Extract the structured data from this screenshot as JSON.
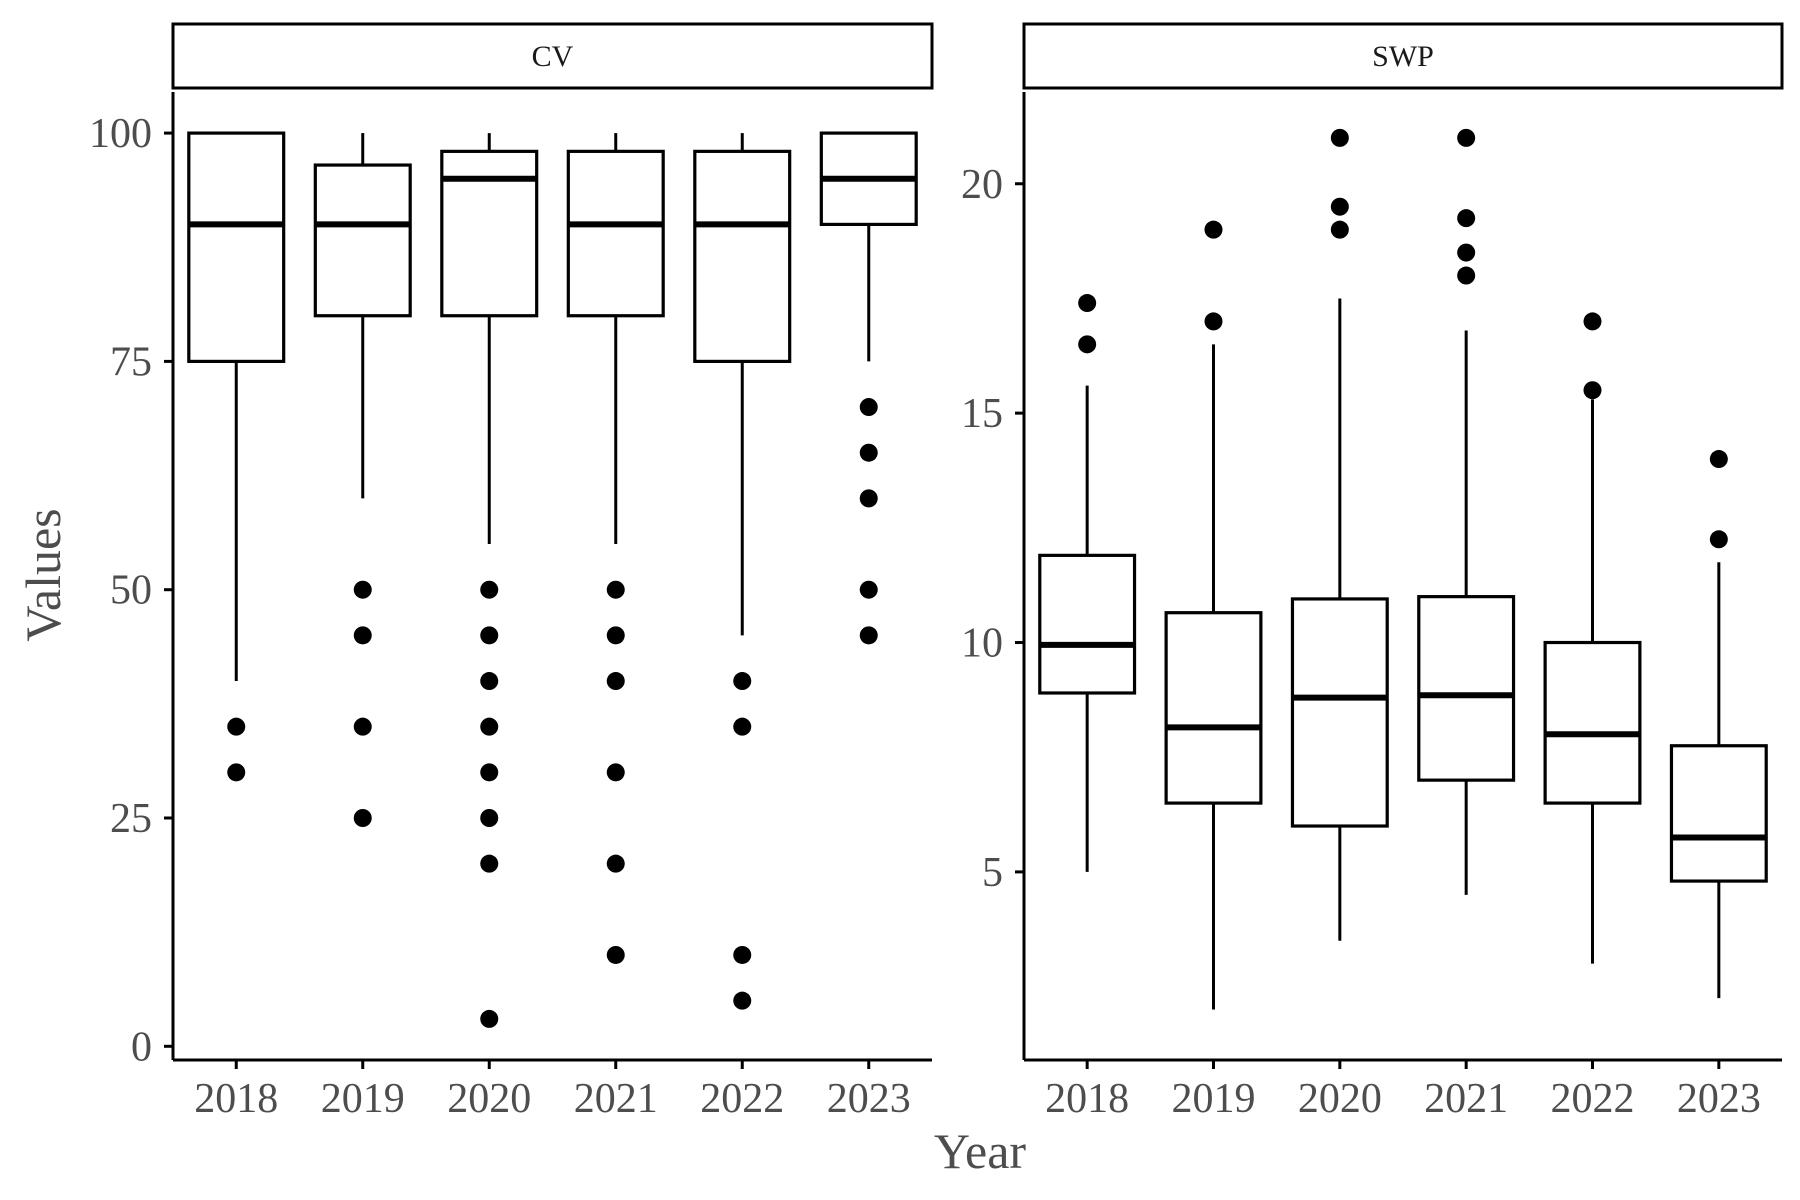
{
  "chart_data": [
    {
      "type": "boxplot",
      "facet": "CV",
      "xlabel": "Year",
      "ylabel": "Values",
      "categories": [
        "2018",
        "2019",
        "2020",
        "2021",
        "2022",
        "2023"
      ],
      "yticks": [
        0,
        25,
        50,
        75,
        100
      ],
      "ylim": [
        -1.5,
        104.5
      ],
      "grid": false,
      "boxes": [
        {
          "x": "2018",
          "whisker_low": 40,
          "q1": 75,
          "median": 90,
          "q3": 100,
          "whisker_high": 100,
          "outliers": [
            35,
            30
          ]
        },
        {
          "x": "2019",
          "whisker_low": 60,
          "q1": 80,
          "median": 90,
          "q3": 96.5,
          "whisker_high": 100,
          "outliers": [
            50,
            45,
            35,
            25
          ]
        },
        {
          "x": "2020",
          "whisker_low": 55,
          "q1": 80,
          "median": 95,
          "q3": 98,
          "whisker_high": 100,
          "outliers": [
            50,
            45,
            40,
            35,
            30,
            25,
            20,
            3
          ]
        },
        {
          "x": "2021",
          "whisker_low": 55,
          "q1": 80,
          "median": 90,
          "q3": 98,
          "whisker_high": 100,
          "outliers": [
            50,
            45,
            40,
            30,
            20,
            10
          ]
        },
        {
          "x": "2022",
          "whisker_low": 45,
          "q1": 75,
          "median": 90,
          "q3": 98,
          "whisker_high": 100,
          "outliers": [
            40,
            35,
            10,
            5
          ]
        },
        {
          "x": "2023",
          "whisker_low": 75,
          "q1": 90,
          "median": 95,
          "q3": 100,
          "whisker_high": 100,
          "outliers": [
            70,
            65,
            60,
            50,
            45
          ]
        }
      ]
    },
    {
      "type": "boxplot",
      "facet": "SWP",
      "xlabel": "Year",
      "ylabel": "Values",
      "categories": [
        "2018",
        "2019",
        "2020",
        "2021",
        "2022",
        "2023"
      ],
      "yticks": [
        5,
        10,
        15,
        20
      ],
      "ylim": [
        0.9,
        22.0
      ],
      "grid": false,
      "boxes": [
        {
          "x": "2018",
          "whisker_low": 5.0,
          "q1": 8.9,
          "median": 9.95,
          "q3": 11.9,
          "whisker_high": 15.6,
          "outliers": [
            17.4,
            16.5
          ]
        },
        {
          "x": "2019",
          "whisker_low": 2.0,
          "q1": 6.5,
          "median": 8.15,
          "q3": 10.65,
          "whisker_high": 16.5,
          "outliers": [
            19.0,
            17.0
          ]
        },
        {
          "x": "2020",
          "whisker_low": 3.5,
          "q1": 6.0,
          "median": 8.8,
          "q3": 10.95,
          "whisker_high": 17.5,
          "outliers": [
            21.0,
            19.5,
            19.0
          ]
        },
        {
          "x": "2021",
          "whisker_low": 4.5,
          "q1": 7.0,
          "median": 8.85,
          "q3": 11.0,
          "whisker_high": 16.8,
          "outliers": [
            21.0,
            19.25,
            18.5,
            18.0
          ]
        },
        {
          "x": "2022",
          "whisker_low": 3.0,
          "q1": 6.5,
          "median": 8.0,
          "q3": 10.0,
          "whisker_high": 15.3,
          "outliers": [
            17.0,
            15.5
          ]
        },
        {
          "x": "2023",
          "whisker_low": 2.25,
          "q1": 4.8,
          "median": 5.75,
          "q3": 7.75,
          "whisker_high": 11.75,
          "outliers": [
            14.0,
            12.25
          ]
        }
      ]
    }
  ],
  "labels": {
    "x_axis_title": "Year",
    "y_axis_title": "Values"
  }
}
